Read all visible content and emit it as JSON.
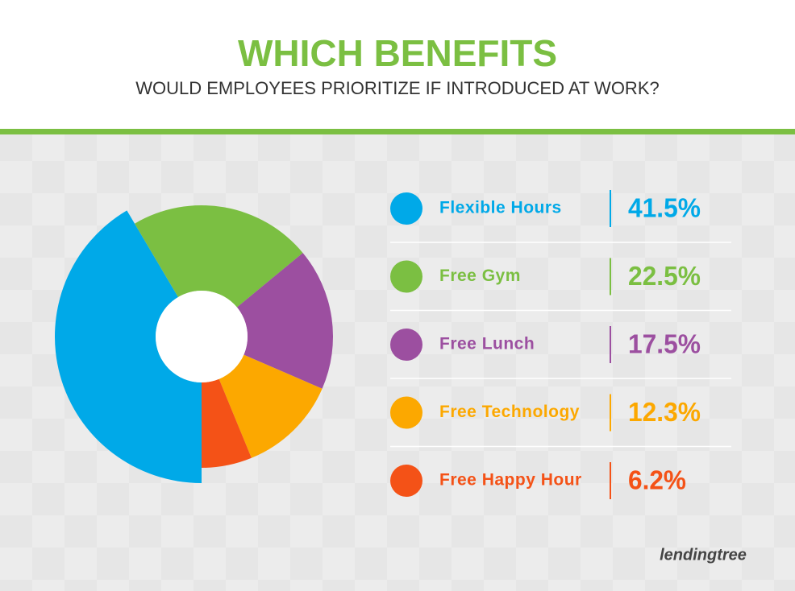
{
  "chart_data": {
    "type": "pie",
    "title": "WHICH BENEFITS",
    "subtitle": "WOULD EMPLOYEES PRIORITIZE IF INTRODUCED AT WORK?",
    "categories": [
      "Flexible Hours",
      "Free Gym",
      "Free Lunch",
      "Free Technology",
      "Free Happy Hour"
    ],
    "values": [
      41.5,
      22.5,
      17.5,
      12.3,
      6.2
    ],
    "value_labels": [
      "41.5%",
      "22.5%",
      "17.5%",
      "12.3%",
      "6.2%"
    ],
    "colors": [
      "#00a9e8",
      "#7bbf42",
      "#9c4fa0",
      "#fca800",
      "#f45217"
    ],
    "brand": "lendingtree"
  }
}
